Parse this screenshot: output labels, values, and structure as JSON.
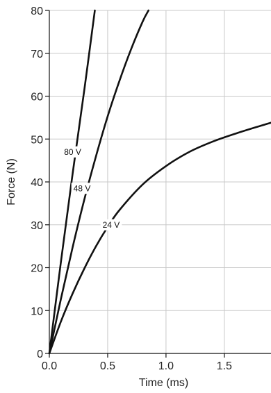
{
  "chart_data": {
    "type": "line",
    "title": "",
    "xlabel": "Time (ms)",
    "ylabel": "Force (N)",
    "xlim": [
      0,
      1.9
    ],
    "ylim": [
      0,
      80
    ],
    "xticks": [
      0.0,
      0.5,
      1.0,
      1.5
    ],
    "xtick_labels": [
      "0.0",
      "0.5",
      "1.0",
      "1.5"
    ],
    "yticks": [
      0,
      10,
      20,
      30,
      40,
      50,
      60,
      70,
      80
    ],
    "ytick_labels": [
      "0",
      "10",
      "20",
      "30",
      "40",
      "50",
      "60",
      "70",
      "80"
    ],
    "grid": true,
    "series": [
      {
        "name": "80 V",
        "x": [
          0,
          0.1,
          0.2,
          0.3,
          0.39
        ],
        "y": [
          0,
          21.5,
          42,
          61.5,
          80
        ],
        "label_at": [
          0.2,
          47
        ]
      },
      {
        "name": "48 V",
        "x": [
          0,
          0.1,
          0.2,
          0.3,
          0.4,
          0.5,
          0.6,
          0.7,
          0.8,
          0.85
        ],
        "y": [
          0,
          12.8,
          24.8,
          35.9,
          46,
          55.3,
          63.5,
          70.9,
          77.4,
          80
        ],
        "label_at": [
          0.28,
          38.5
        ]
      },
      {
        "name": "24 V",
        "x": [
          0,
          0.1,
          0.2,
          0.3,
          0.4,
          0.5,
          0.6,
          0.8,
          1.0,
          1.2,
          1.4,
          1.6,
          1.8,
          1.9
        ],
        "y": [
          0,
          7.5,
          14,
          19.8,
          25,
          29.5,
          33.4,
          39.4,
          43.7,
          47,
          49.4,
          51.3,
          53,
          53.8
        ],
        "label_at": [
          0.53,
          30
        ]
      }
    ]
  }
}
